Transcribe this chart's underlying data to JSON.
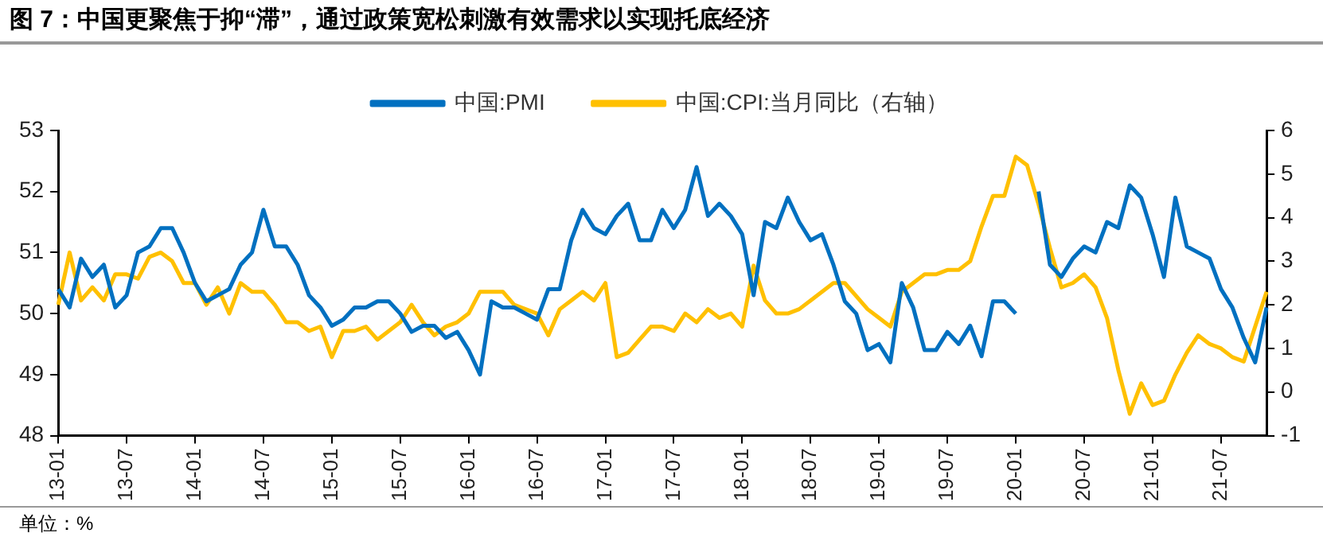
{
  "chart_data": {
    "type": "line",
    "title": "图 7：中国更聚焦于抑“滞”，通过政策宽松刺激有效需求以实现托底经济",
    "annotations": [
      "单位：%"
    ],
    "categories": [
      "13-01",
      null,
      null,
      null,
      null,
      null,
      "13-07",
      null,
      null,
      null,
      null,
      null,
      "14-01",
      null,
      null,
      null,
      null,
      null,
      "14-07",
      null,
      null,
      null,
      null,
      null,
      "15-01",
      null,
      null,
      null,
      null,
      null,
      "15-07",
      null,
      null,
      null,
      null,
      null,
      "16-01",
      null,
      null,
      null,
      null,
      null,
      "16-07",
      null,
      null,
      null,
      null,
      null,
      "17-01",
      null,
      null,
      null,
      null,
      null,
      "17-07",
      null,
      null,
      null,
      null,
      null,
      "18-01",
      null,
      null,
      null,
      null,
      null,
      "18-07",
      null,
      null,
      null,
      null,
      null,
      "19-01",
      null,
      null,
      null,
      null,
      null,
      "19-07",
      null,
      null,
      null,
      null,
      null,
      "20-01",
      null,
      null,
      null,
      null,
      null,
      "20-07",
      null,
      null,
      null,
      null,
      null,
      "21-01",
      null,
      null,
      null,
      null,
      null,
      "21-07",
      null,
      null,
      null,
      null
    ],
    "series": [
      {
        "name": "中国:PMI",
        "color": "#0070c0",
        "values": [
          50.4,
          50.1,
          50.9,
          50.6,
          50.8,
          50.1,
          50.3,
          51.0,
          51.1,
          51.4,
          51.4,
          51.0,
          50.5,
          50.2,
          50.3,
          50.4,
          50.8,
          51.0,
          51.7,
          51.1,
          51.1,
          50.8,
          50.3,
          50.1,
          49.8,
          49.9,
          50.1,
          50.1,
          50.2,
          50.2,
          50.0,
          49.7,
          49.8,
          49.8,
          49.6,
          49.7,
          49.4,
          49.0,
          50.2,
          50.1,
          50.1,
          50.0,
          49.9,
          50.4,
          50.4,
          51.2,
          51.7,
          51.4,
          51.3,
          51.6,
          51.8,
          51.2,
          51.2,
          51.7,
          51.4,
          51.7,
          52.4,
          51.6,
          51.8,
          51.6,
          51.3,
          50.3,
          51.5,
          51.4,
          51.9,
          51.5,
          51.2,
          51.3,
          50.8,
          50.2,
          50.0,
          49.4,
          49.5,
          49.2,
          50.5,
          50.1,
          49.4,
          49.4,
          49.7,
          49.5,
          49.8,
          49.3,
          50.2,
          50.2,
          50.0,
          null,
          52.0,
          50.8,
          50.6,
          50.9,
          51.1,
          51.0,
          51.5,
          51.4,
          52.1,
          51.9,
          51.3,
          50.6,
          51.9,
          51.1,
          51.0,
          50.9,
          50.4,
          50.1,
          49.6,
          49.2,
          50.1
        ]
      },
      {
        "name": "中国:CPI:当月同比（右轴）",
        "color": "#ffc000",
        "axis": "y2",
        "values": [
          2.0,
          3.2,
          2.1,
          2.4,
          2.1,
          2.7,
          2.7,
          2.6,
          3.1,
          3.2,
          3.0,
          2.5,
          2.5,
          2.0,
          2.4,
          1.8,
          2.5,
          2.3,
          2.3,
          2.0,
          1.6,
          1.6,
          1.4,
          1.5,
          0.8,
          1.4,
          1.4,
          1.5,
          1.2,
          1.4,
          1.6,
          2.0,
          1.6,
          1.3,
          1.5,
          1.6,
          1.8,
          2.3,
          2.3,
          2.3,
          2.0,
          1.9,
          1.8,
          1.3,
          1.9,
          2.1,
          2.3,
          2.1,
          2.5,
          0.8,
          0.9,
          1.2,
          1.5,
          1.5,
          1.4,
          1.8,
          1.6,
          1.9,
          1.7,
          1.8,
          1.5,
          2.9,
          2.1,
          1.8,
          1.8,
          1.9,
          2.1,
          2.3,
          2.5,
          2.5,
          2.2,
          1.9,
          1.7,
          1.5,
          2.3,
          2.5,
          2.7,
          2.7,
          2.8,
          2.8,
          3.0,
          3.8,
          4.5,
          4.5,
          5.4,
          5.2,
          4.3,
          3.3,
          2.4,
          2.5,
          2.7,
          2.4,
          1.7,
          0.5,
          -0.5,
          0.2,
          -0.3,
          -0.2,
          0.4,
          0.9,
          1.3,
          1.1,
          1.0,
          0.8,
          0.7,
          1.5,
          2.3
        ]
      }
    ],
    "ylim": [
      48,
      53
    ],
    "yticks": [
      48,
      49,
      50,
      51,
      52,
      53
    ],
    "y2lim": [
      -1,
      6
    ],
    "y2ticks": [
      -1,
      0,
      1,
      2,
      3,
      4,
      5,
      6
    ],
    "legend": "top",
    "grid": false,
    "marker": "none",
    "line_style": "solid"
  }
}
